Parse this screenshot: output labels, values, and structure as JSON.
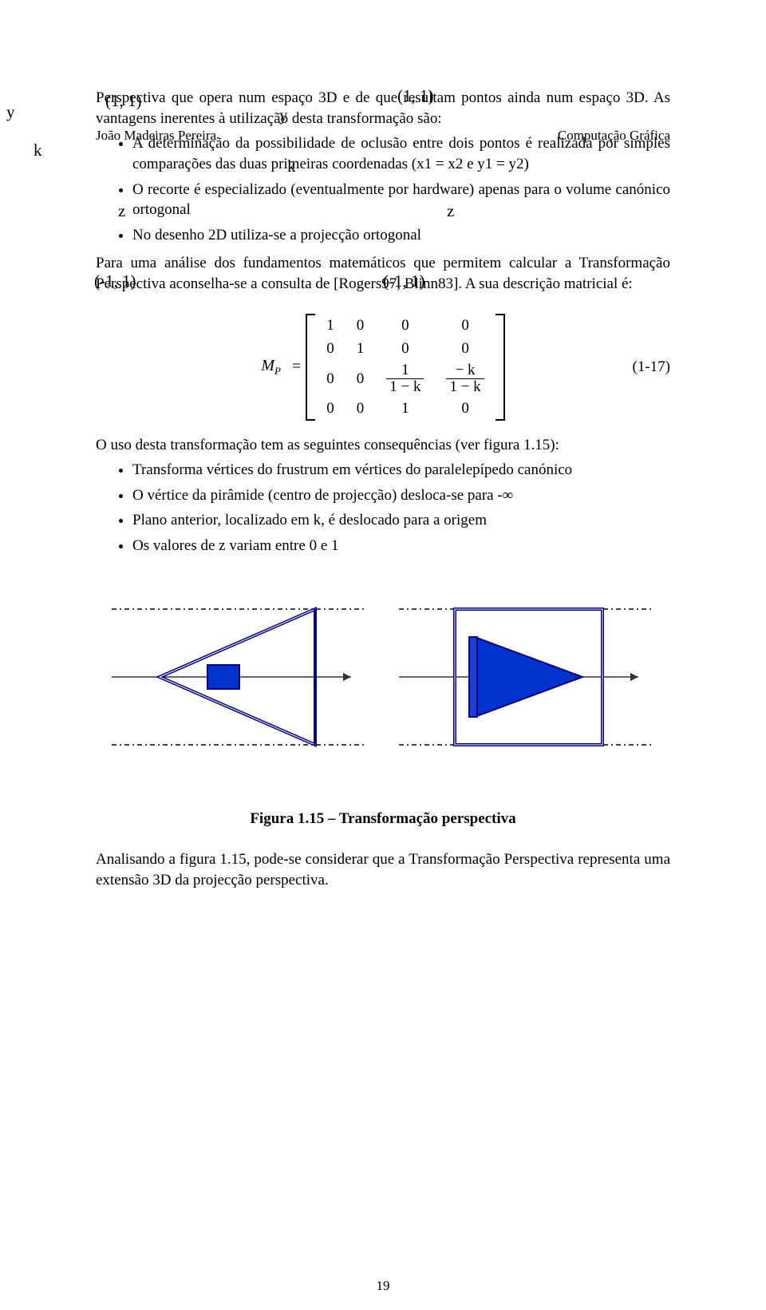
{
  "overprint": {
    "coords_top_left": "(1, 1)",
    "coords_top_right": "(1, 1)",
    "coords_bottom_left": "(-1, 1)",
    "coords_bottom_right": "(-1, 1)",
    "y_left": "y",
    "y_mid": "y",
    "k_left": "k",
    "k_mid": "k",
    "z_left": "z",
    "z_right": "z"
  },
  "header": {
    "left": "João Madeiras Pereira",
    "right": "Computação Gráfica"
  },
  "para1": "Perspectiva que opera num espaço 3D e de que resultam pontos ainda num espaço 3D. As vantagens inerentes à utilização desta transformação são:",
  "bullets1": {
    "b1": "A determinação da possibilidade de oclusão entre dois pontos é realizada por simples comparações das duas primeiras coordenadas (x1 = x2 e y1 = y2)",
    "b2": "O recorte é especializado (eventualmente por hardware) apenas para o volume canónico ortogonal",
    "b3": "No desenho 2D utiliza-se a projecção ortogonal"
  },
  "para2": "Para uma análise dos fundamentos matemáticos que permitem calcular a Transformação Perspectiva aconselha-se a consulta de [Rogers97, Blinn83]. A sua descrição matricial é:",
  "matrix": {
    "label": "M",
    "label_sub": "P",
    "eq": "=",
    "rows": [
      [
        "1",
        "0",
        "0",
        "0"
      ],
      [
        "0",
        "1",
        "0",
        "0"
      ],
      [
        "0",
        "0",
        {
          "frac": [
            "1",
            "1 − k"
          ]
        },
        {
          "frac": [
            "− k",
            "1 − k"
          ]
        }
      ],
      [
        "0",
        "0",
        "1",
        "0"
      ]
    ],
    "eqnum": "(1-17)"
  },
  "para3": "O uso desta transformação tem as seguintes consequências (ver figura 1.15):",
  "bullets2": {
    "b1": "Transforma vértices do frustrum em vértices do paralelepípedo canónico",
    "b2": "O vértice da pirâmide (centro de projecção) desloca-se para -∞",
    "b3": "Plano anterior, localizado em k, é deslocado para a origem",
    "b4": "Os valores de z variam entre 0 e 1"
  },
  "figure": {
    "caption": "Figura 1.15 – Transformação perspectiva",
    "colors": {
      "fill_blue": "#0033cc",
      "fill_side_face": "#1a3fd6",
      "stroke_black": "#333333",
      "stroke_navy": "#000080",
      "dash_black": "#000000"
    },
    "dash_pattern": "6,4,2,4"
  },
  "para4": "Analisando a figura 1.15, pode-se considerar que a Transformação Perspectiva representa uma extensão 3D da projecção perspectiva.",
  "page_number": "19"
}
